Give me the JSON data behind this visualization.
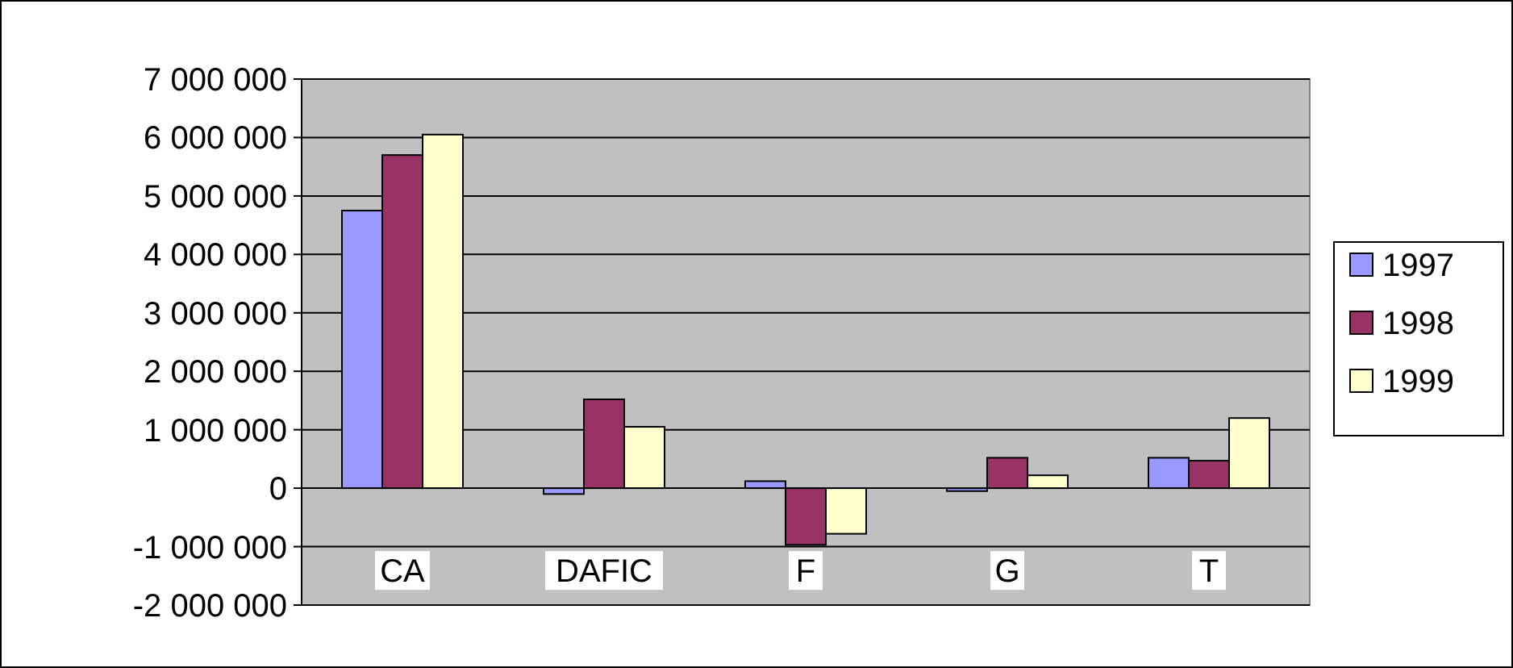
{
  "chart_data": {
    "type": "bar",
    "categories": [
      "CA",
      "DAFIC",
      "F",
      "G",
      "T"
    ],
    "series": [
      {
        "name": "1997",
        "color": "#9999ff",
        "values": [
          4750000,
          -100000,
          120000,
          -50000,
          520000
        ]
      },
      {
        "name": "1998",
        "color": "#993366",
        "values": [
          5700000,
          1520000,
          -970000,
          520000,
          470000
        ]
      },
      {
        "name": "1999",
        "color": "#ffffcc",
        "values": [
          6050000,
          1050000,
          -780000,
          220000,
          1200000
        ]
      }
    ],
    "ylim": [
      -2000000,
      7000000
    ],
    "yticks": [
      {
        "value": -2000000,
        "label": "-2 000 000"
      },
      {
        "value": -1000000,
        "label": "-1 000 000"
      },
      0,
      {
        "value": 1000000,
        "label": "1 000 000"
      },
      {
        "value": 2000000,
        "label": "2 000 000"
      },
      {
        "value": 3000000,
        "label": "3 000 000"
      },
      {
        "value": 4000000,
        "label": "4 000 000"
      },
      {
        "value": 5000000,
        "label": "5 000 000"
      },
      {
        "value": 6000000,
        "label": "6 000 000"
      },
      {
        "value": 7000000,
        "label": "7 000 000"
      }
    ],
    "grid": "y",
    "legend": "right"
  }
}
